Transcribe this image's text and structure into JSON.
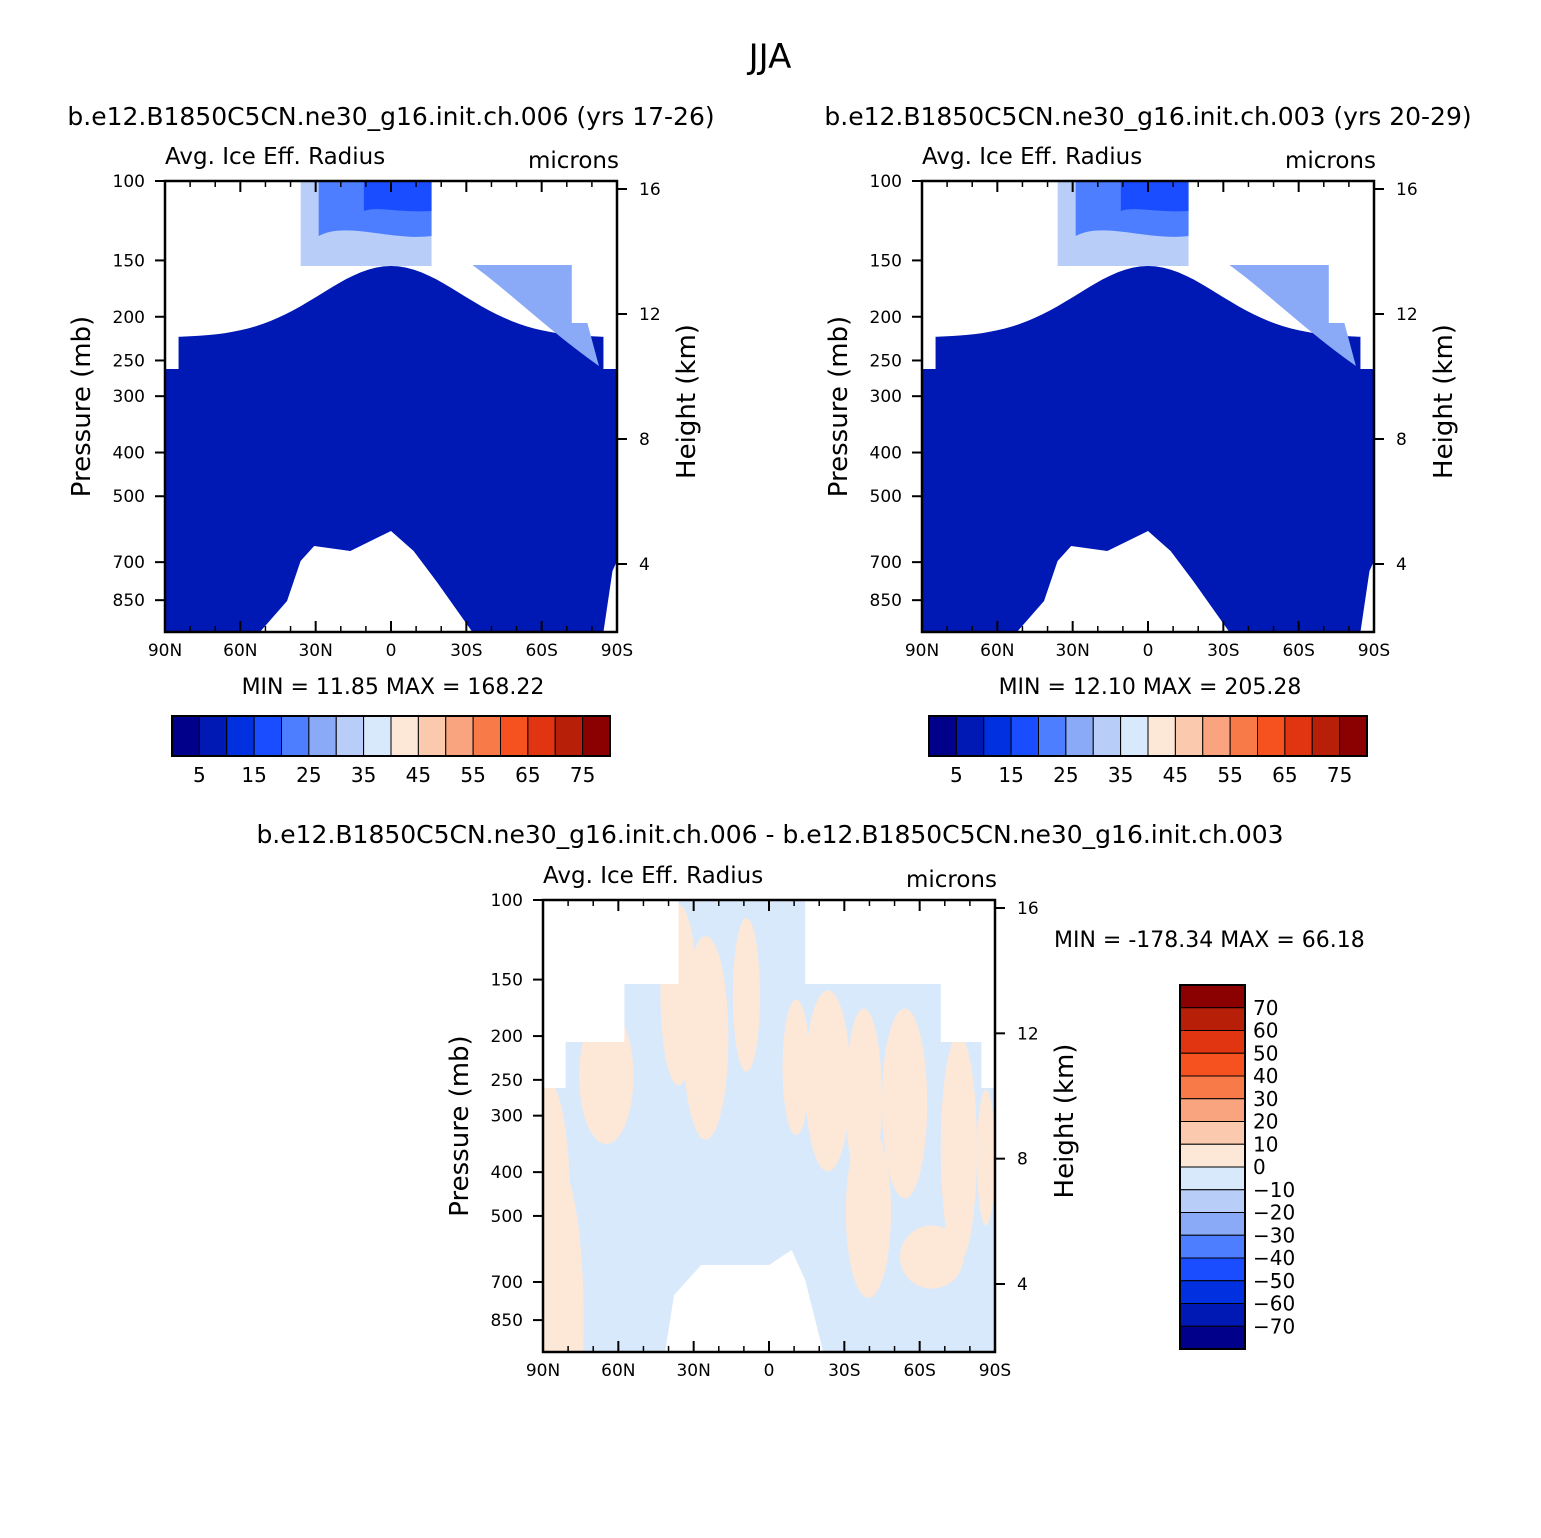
{
  "figure": {
    "season_title": "JJA",
    "panel_title_left": "b.e12.B1850C5CN.ne30_g16.init.ch.006 (yrs 17-26)",
    "panel_title_right": "b.e12.B1850C5CN.ne30_g16.init.ch.003 (yrs 20-29)",
    "diff_title": "b.e12.B1850C5CN.ne30_g16.init.ch.006 - b.e12.B1850C5CN.ne30_g16.init.ch.003"
  },
  "chart_data": [
    {
      "type": "heatmap",
      "panel": "left",
      "variable_label": "Avg. Ice Eff. Radius",
      "units": "microns",
      "xlabel": "",
      "ylabel": "Pressure (mb)",
      "ylabel_right": "Height (km)",
      "x_ticks": [
        "90N",
        "60N",
        "30N",
        "0",
        "30S",
        "60S",
        "90S"
      ],
      "y_ticks": [
        100,
        150,
        200,
        250,
        300,
        400,
        500,
        700,
        850
      ],
      "y_right_ticks": [
        16,
        12,
        8,
        4
      ],
      "ylim": [
        100,
        1000
      ],
      "y_scale": "log",
      "stats": "MIN =   11.85   MAX =  168.22",
      "min": 11.85,
      "max": 168.22,
      "colorbar_labels": [
        "5",
        "15",
        "25",
        "35",
        "45",
        "55",
        "65",
        "75"
      ],
      "colorbar_orientation": "horizontal"
    },
    {
      "type": "heatmap",
      "panel": "right",
      "variable_label": "Avg. Ice Eff. Radius",
      "units": "microns",
      "xlabel": "",
      "ylabel": "Pressure (mb)",
      "ylabel_right": "Height (km)",
      "x_ticks": [
        "90N",
        "60N",
        "30N",
        "0",
        "30S",
        "60S",
        "90S"
      ],
      "y_ticks": [
        100,
        150,
        200,
        250,
        300,
        400,
        500,
        700,
        850
      ],
      "y_right_ticks": [
        16,
        12,
        8,
        4
      ],
      "ylim": [
        100,
        1000
      ],
      "y_scale": "log",
      "stats": "MIN =   12.10   MAX =  205.28",
      "min": 12.1,
      "max": 205.28,
      "colorbar_labels": [
        "5",
        "15",
        "25",
        "35",
        "45",
        "55",
        "65",
        "75"
      ],
      "colorbar_orientation": "horizontal"
    },
    {
      "type": "heatmap",
      "panel": "difference",
      "variable_label": "Avg. Ice Eff. Radius",
      "units": "microns",
      "xlabel": "",
      "ylabel": "Pressure (mb)",
      "ylabel_right": "Height (km)",
      "x_ticks": [
        "90N",
        "60N",
        "30N",
        "0",
        "30S",
        "60S",
        "90S"
      ],
      "y_ticks": [
        100,
        150,
        200,
        250,
        300,
        400,
        500,
        700,
        850
      ],
      "y_right_ticks": [
        16,
        12,
        8,
        4
      ],
      "ylim": [
        100,
        1000
      ],
      "y_scale": "log",
      "stats": "MIN = -178.34   MAX =   66.18",
      "min": -178.34,
      "max": 66.18,
      "colorbar_labels": [
        "70",
        "60",
        "50",
        "40",
        "30",
        "20",
        "10",
        "0",
        "-10",
        "-20",
        "-30",
        "-40",
        "-50",
        "-60",
        "-70"
      ],
      "colorbar_orientation": "vertical"
    }
  ],
  "colors": {
    "abs_scale": [
      "#00008b",
      "#0018b4",
      "#0030e0",
      "#1a4dff",
      "#4d7eff",
      "#8aaaf8",
      "#b8cdf8",
      "#d9e9fc",
      "#fde8d8",
      "#fbc9ad",
      "#f9a47e",
      "#f87a48",
      "#f65220",
      "#e03510",
      "#b81f08",
      "#8b0000"
    ],
    "diff_scale": [
      "#8b0000",
      "#b81f08",
      "#e03510",
      "#f65220",
      "#f87a48",
      "#f9a47e",
      "#fbc9ad",
      "#fde8d8",
      "#d9e9fc",
      "#b8cdf8",
      "#8aaaf8",
      "#4d7eff",
      "#1a4dff",
      "#0030e0",
      "#0018b4",
      "#00008b"
    ]
  }
}
